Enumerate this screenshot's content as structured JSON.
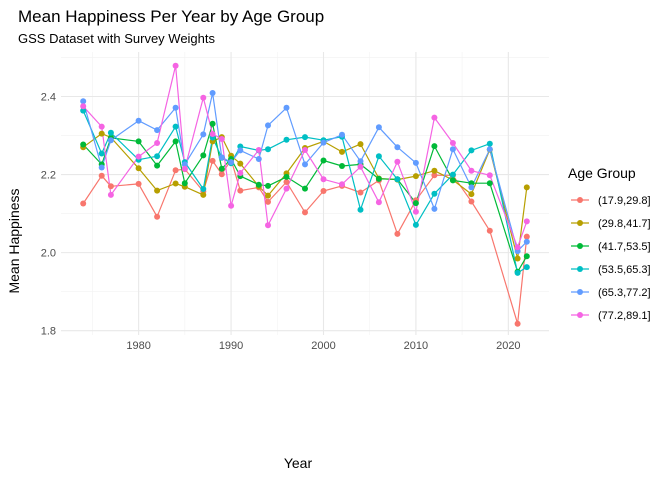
{
  "chart_data": {
    "type": "line",
    "title": "Mean Happiness Per Year by Age Group",
    "subtitle": "GSS Dataset with Survey Weights",
    "xlabel": "Year",
    "ylabel": "Mean Happiness",
    "xlim": [
      1971.6,
      2024.4
    ],
    "ylim": [
      1.789,
      2.514
    ],
    "x_ticks": [
      1980,
      1990,
      2000,
      2010,
      2020
    ],
    "y_ticks": [
      1.8,
      2.0,
      2.2,
      2.4
    ],
    "x_tick_labels": [
      "1980",
      "1990",
      "2000",
      "2010",
      "2020"
    ],
    "y_tick_labels": [
      "1.8",
      "2.0",
      "2.2",
      "2.4"
    ],
    "grid": true,
    "legend": {
      "title": "Age Group",
      "position": "right"
    },
    "series": [
      {
        "name": "(17.9,29.8]",
        "color": "#F8766D",
        "points": [
          [
            1974,
            2.126
          ],
          [
            1976,
            2.197
          ],
          [
            1977,
            2.17
          ],
          [
            1980,
            2.176
          ],
          [
            1982,
            2.092
          ],
          [
            1984,
            2.211
          ],
          [
            1985,
            2.214
          ],
          [
            1987,
            2.157
          ],
          [
            1988,
            2.235
          ],
          [
            1989,
            2.201
          ],
          [
            1990,
            2.238
          ],
          [
            1991,
            2.159
          ],
          [
            1993,
            2.167
          ],
          [
            1994,
            2.13
          ],
          [
            1996,
            2.181
          ],
          [
            1998,
            2.103
          ],
          [
            2000,
            2.158
          ],
          [
            2002,
            2.171
          ],
          [
            2004,
            2.154
          ],
          [
            2006,
            2.185
          ],
          [
            2008,
            2.048
          ],
          [
            2010,
            2.134
          ],
          [
            2012,
            2.198
          ],
          [
            2014,
            2.198
          ],
          [
            2016,
            2.131
          ],
          [
            2018,
            2.056
          ],
          [
            2021,
            1.818
          ],
          [
            2022,
            2.041
          ]
        ]
      },
      {
        "name": "(29.8,41.7]",
        "color": "#B79F00",
        "points": [
          [
            1974,
            2.27
          ],
          [
            1976,
            2.305
          ],
          [
            1977,
            2.295
          ],
          [
            1980,
            2.216
          ],
          [
            1982,
            2.159
          ],
          [
            1984,
            2.177
          ],
          [
            1985,
            2.169
          ],
          [
            1987,
            2.148
          ],
          [
            1988,
            2.285
          ],
          [
            1989,
            2.296
          ],
          [
            1990,
            2.248
          ],
          [
            1991,
            2.228
          ],
          [
            1993,
            2.17
          ],
          [
            1994,
            2.146
          ],
          [
            1996,
            2.203
          ],
          [
            1998,
            2.268
          ],
          [
            2000,
            2.285
          ],
          [
            2002,
            2.258
          ],
          [
            2004,
            2.278
          ],
          [
            2006,
            2.19
          ],
          [
            2008,
            2.187
          ],
          [
            2010,
            2.196
          ],
          [
            2012,
            2.21
          ],
          [
            2014,
            2.186
          ],
          [
            2016,
            2.15
          ],
          [
            2018,
            2.264
          ],
          [
            2021,
            1.985
          ],
          [
            2022,
            2.167
          ]
        ]
      },
      {
        "name": "(41.7,53.5]",
        "color": "#00BA38",
        "points": [
          [
            1974,
            2.277
          ],
          [
            1976,
            2.226
          ],
          [
            1977,
            2.294
          ],
          [
            1980,
            2.285
          ],
          [
            1982,
            2.223
          ],
          [
            1984,
            2.285
          ],
          [
            1985,
            2.178
          ],
          [
            1987,
            2.249
          ],
          [
            1988,
            2.33
          ],
          [
            1989,
            2.215
          ],
          [
            1990,
            2.24
          ],
          [
            1991,
            2.196
          ],
          [
            1993,
            2.174
          ],
          [
            1994,
            2.171
          ],
          [
            1996,
            2.194
          ],
          [
            1998,
            2.164
          ],
          [
            2000,
            2.236
          ],
          [
            2002,
            2.222
          ],
          [
            2004,
            2.226
          ],
          [
            2006,
            2.189
          ],
          [
            2008,
            2.188
          ],
          [
            2010,
            2.127
          ],
          [
            2012,
            2.273
          ],
          [
            2014,
            2.185
          ],
          [
            2016,
            2.178
          ],
          [
            2018,
            2.178
          ],
          [
            2021,
            1.951
          ],
          [
            2022,
            1.991
          ]
        ]
      },
      {
        "name": "(53.5,65.3]",
        "color": "#00BFC4",
        "points": [
          [
            1974,
            2.364
          ],
          [
            1976,
            2.254
          ],
          [
            1977,
            2.307
          ],
          [
            1980,
            2.238
          ],
          [
            1982,
            2.247
          ],
          [
            1984,
            2.323
          ],
          [
            1985,
            2.232
          ],
          [
            1987,
            2.163
          ],
          [
            1988,
            2.295
          ],
          [
            1989,
            2.243
          ],
          [
            1990,
            2.229
          ],
          [
            1991,
            2.272
          ],
          [
            1993,
            2.262
          ],
          [
            1994,
            2.265
          ],
          [
            1996,
            2.289
          ],
          [
            1998,
            2.296
          ],
          [
            2000,
            2.288
          ],
          [
            2002,
            2.297
          ],
          [
            2004,
            2.11
          ],
          [
            2006,
            2.247
          ],
          [
            2008,
            2.188
          ],
          [
            2010,
            2.071
          ],
          [
            2012,
            2.151
          ],
          [
            2014,
            2.2
          ],
          [
            2016,
            2.262
          ],
          [
            2018,
            2.279
          ],
          [
            2021,
            1.948
          ],
          [
            2022,
            1.963
          ]
        ]
      },
      {
        "name": "(65.3,77.2]",
        "color": "#619CFF",
        "points": [
          [
            1974,
            2.388
          ],
          [
            1976,
            2.218
          ],
          [
            1977,
            2.288
          ],
          [
            1980,
            2.338
          ],
          [
            1982,
            2.314
          ],
          [
            1984,
            2.371
          ],
          [
            1985,
            2.226
          ],
          [
            1987,
            2.303
          ],
          [
            1988,
            2.409
          ],
          [
            1989,
            2.244
          ],
          [
            1990,
            2.232
          ],
          [
            1991,
            2.262
          ],
          [
            1993,
            2.24
          ],
          [
            1994,
            2.326
          ],
          [
            1996,
            2.371
          ],
          [
            1998,
            2.226
          ],
          [
            2000,
            2.282
          ],
          [
            2002,
            2.302
          ],
          [
            2004,
            2.234
          ],
          [
            2006,
            2.321
          ],
          [
            2008,
            2.27
          ],
          [
            2010,
            2.23
          ],
          [
            2012,
            2.112
          ],
          [
            2014,
            2.265
          ],
          [
            2016,
            2.167
          ],
          [
            2018,
            2.265
          ],
          [
            2021,
            2.004
          ],
          [
            2022,
            2.028
          ]
        ]
      },
      {
        "name": "(77.2,89.1]",
        "color": "#F564E3",
        "points": [
          [
            1974,
            2.375
          ],
          [
            1976,
            2.323
          ],
          [
            1977,
            2.148
          ],
          [
            1980,
            2.246
          ],
          [
            1982,
            2.281
          ],
          [
            1984,
            2.479
          ],
          [
            1985,
            2.215
          ],
          [
            1987,
            2.397
          ],
          [
            1988,
            2.304
          ],
          [
            1989,
            2.291
          ],
          [
            1990,
            2.12
          ],
          [
            1991,
            2.204
          ],
          [
            1993,
            2.263
          ],
          [
            1994,
            2.07
          ],
          [
            1996,
            2.164
          ],
          [
            1998,
            2.263
          ],
          [
            2000,
            2.188
          ],
          [
            2002,
            2.175
          ],
          [
            2004,
            2.22
          ],
          [
            2006,
            2.129
          ],
          [
            2008,
            2.233
          ],
          [
            2010,
            2.105
          ],
          [
            2012,
            2.346
          ],
          [
            2014,
            2.281
          ],
          [
            2016,
            2.21
          ],
          [
            2018,
            2.198
          ],
          [
            2021,
            2.014
          ],
          [
            2022,
            2.08
          ]
        ]
      }
    ]
  }
}
